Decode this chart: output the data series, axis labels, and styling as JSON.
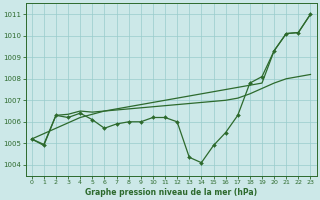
{
  "xlabel": "Graphe pression niveau de la mer (hPa)",
  "ylim": [
    1003.5,
    1011.5
  ],
  "xlim": [
    -0.5,
    23.5
  ],
  "yticks": [
    1004,
    1005,
    1006,
    1007,
    1008,
    1009,
    1010,
    1011
  ],
  "xticks": [
    0,
    1,
    2,
    3,
    4,
    5,
    6,
    7,
    8,
    9,
    10,
    11,
    12,
    13,
    14,
    15,
    16,
    17,
    18,
    19,
    20,
    21,
    22,
    23
  ],
  "bg_color": "#cce8e8",
  "grid_color": "#99cccc",
  "line_color": "#2d6a2d",
  "series_main": [
    1005.2,
    1004.9,
    1006.3,
    1006.2,
    1006.4,
    1006.1,
    1005.7,
    1005.9,
    1006.0,
    1006.0,
    1006.2,
    1006.2,
    1006.0,
    1004.35,
    1004.1,
    1004.9,
    1005.5,
    1006.3,
    1007.8,
    1008.1,
    1009.3,
    1010.1,
    1010.15,
    1011.0
  ],
  "series_smooth": [
    1005.2,
    1004.95,
    1006.3,
    1006.35,
    1006.5,
    1006.45,
    1006.5,
    1006.55,
    1006.6,
    1006.65,
    1006.7,
    1006.75,
    1006.8,
    1006.85,
    1006.9,
    1006.95,
    1007.0,
    1007.1,
    1007.3,
    1007.55,
    1007.8,
    1008.0,
    1008.1,
    1008.2
  ],
  "series_linear": [
    1005.2,
    1005.45,
    1005.7,
    1005.95,
    1006.2,
    1006.35,
    1006.5,
    1006.6,
    1006.7,
    1006.8,
    1006.9,
    1007.0,
    1007.1,
    1007.2,
    1007.3,
    1007.4,
    1007.5,
    1007.6,
    1007.7,
    1007.8,
    1009.3,
    1010.1,
    1010.15,
    1011.0
  ]
}
